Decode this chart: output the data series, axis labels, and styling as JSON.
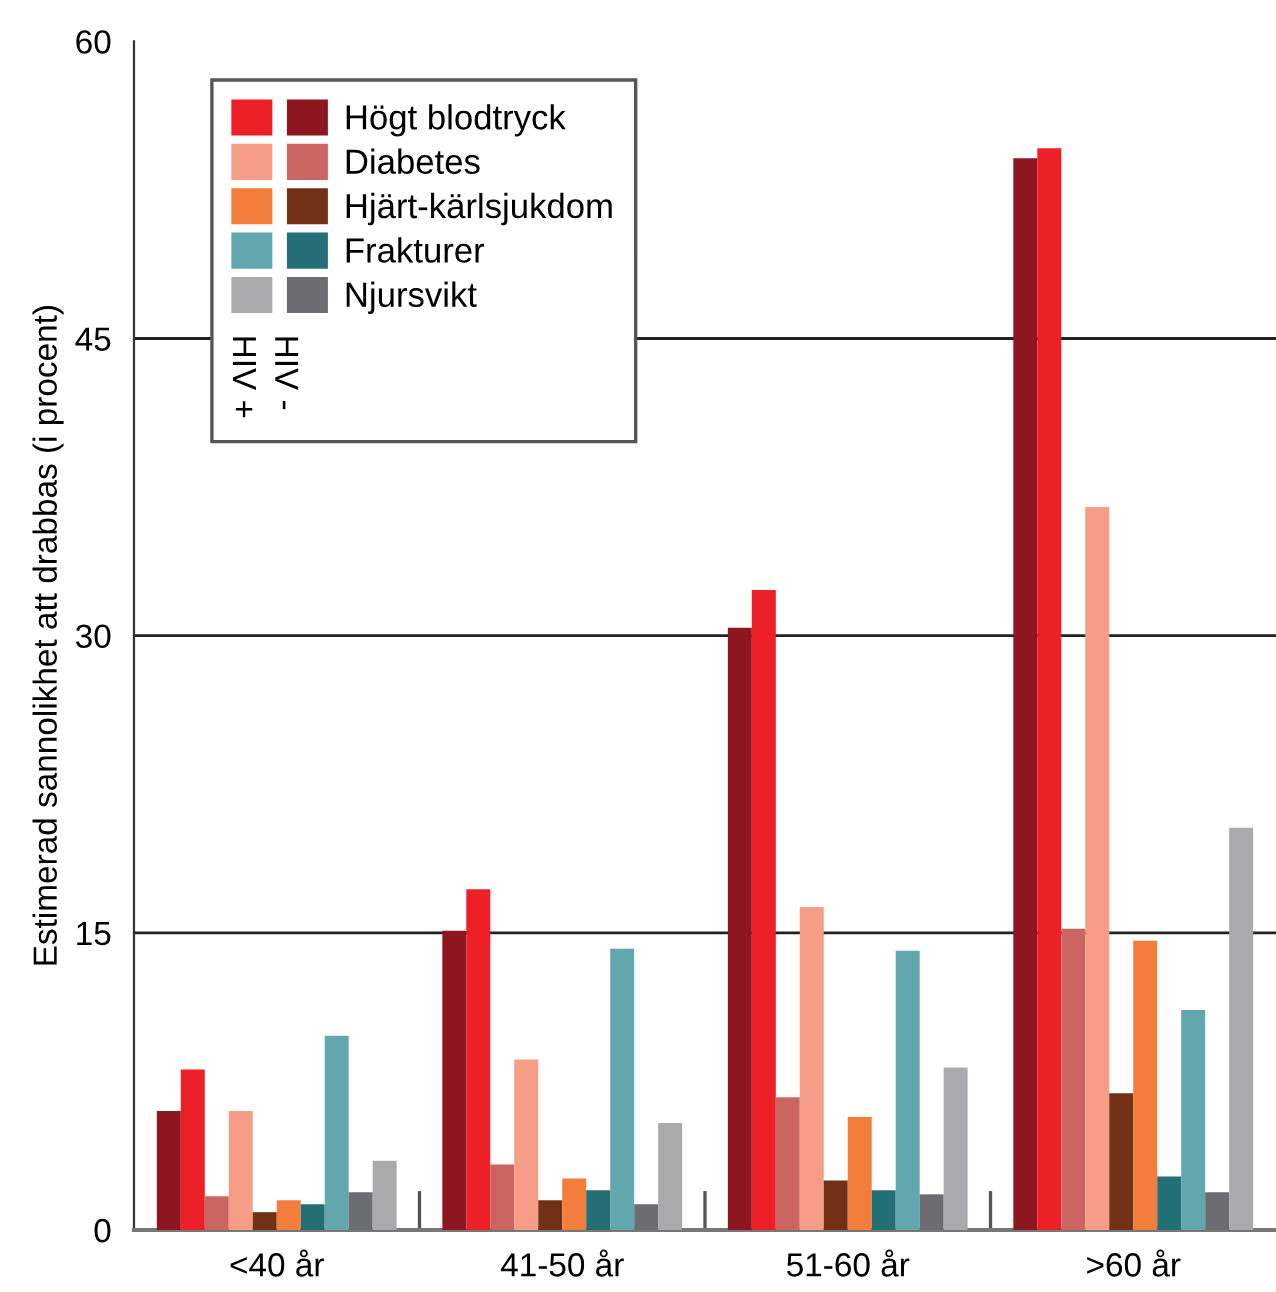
{
  "chart_data": {
    "type": "bar",
    "ylabel": "Estimerad sannolikhet att drabbas (i procent)",
    "categories": [
      "<40 år",
      "41-50 år",
      "51-60 år",
      ">60 år"
    ],
    "series": [
      {
        "name": "Högt blodtryck",
        "color": "#8e1620",
        "values": [
          6.0,
          15.1,
          30.4,
          54.1
        ]
      },
      {
        "color": "#ed1f27",
        "values": [
          8.1,
          17.2,
          32.3,
          54.6
        ]
      },
      {
        "name": "Diabetes",
        "color": "#cb6561",
        "values": [
          1.7,
          3.3,
          6.7,
          15.2
        ]
      },
      {
        "color": "#f59d86",
        "values": [
          6.0,
          8.6,
          16.3,
          36.5
        ]
      },
      {
        "name": "Hjärt-kärlsjukdom",
        "color": "#723116",
        "values": [
          0.9,
          1.5,
          2.5,
          6.9
        ]
      },
      {
        "color": "#f37e3c",
        "values": [
          1.5,
          2.6,
          5.7,
          14.6
        ]
      },
      {
        "name": "Frakturer",
        "color": "#246f75",
        "values": [
          1.3,
          2.0,
          2.0,
          2.7
        ]
      },
      {
        "color": "#62a6ae",
        "values": [
          9.8,
          14.2,
          14.1,
          11.1
        ]
      },
      {
        "name": "Njursvikt",
        "color": "#6c6d70",
        "values": [
          1.9,
          1.3,
          1.8,
          1.9
        ]
      },
      {
        "color": "#a9aaab",
        "values": [
          3.5,
          5.4,
          8.2,
          20.3
        ]
      }
    ],
    "annotations": [
      "HIV +",
      "HIV -"
    ],
    "ylim": [
      0,
      60
    ],
    "yticks": [
      0,
      15,
      30,
      45,
      60
    ],
    "grid": "y",
    "legend": "top left"
  }
}
